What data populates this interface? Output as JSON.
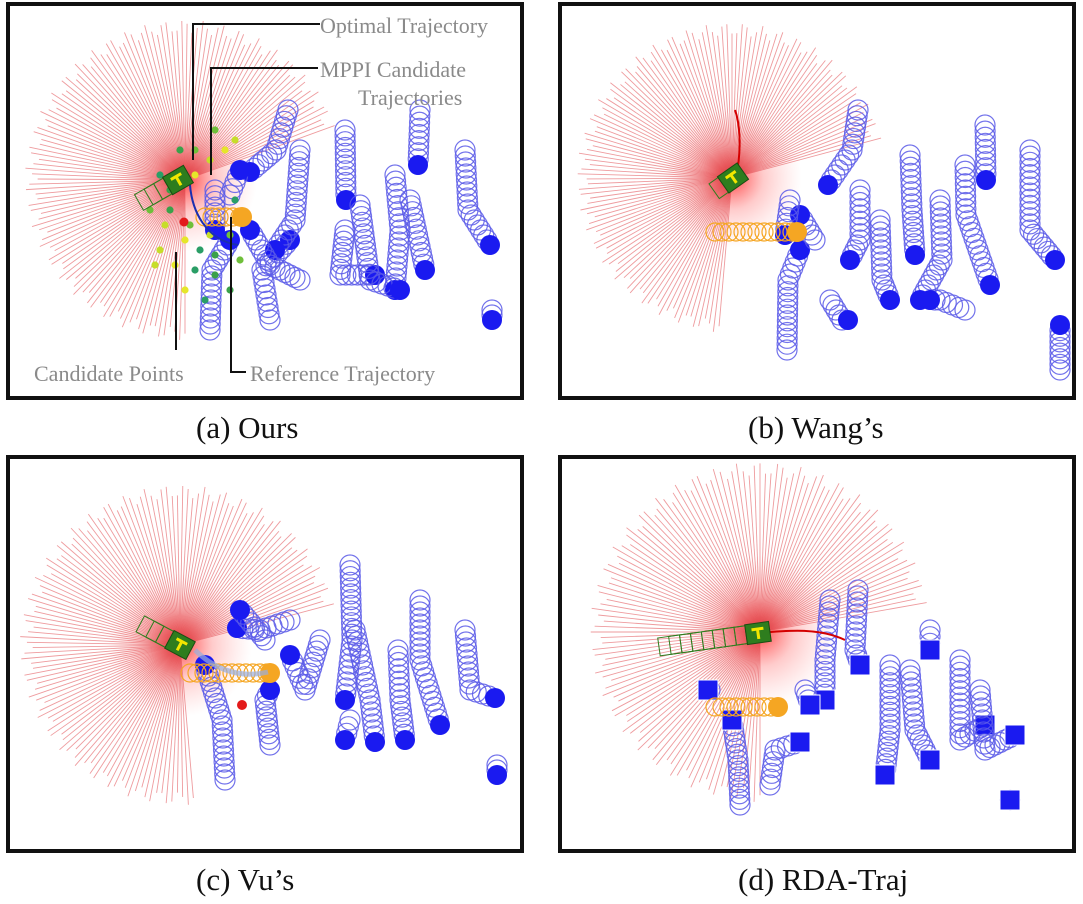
{
  "panels": [
    {
      "caption": "(a) Ours",
      "annotations": {
        "optimal": "Optimal Trajectory",
        "mppi_line1": "MPPI Candidate",
        "mppi_line2": "Trajectories",
        "candidate_points": "Candidate Points",
        "reference": "Reference Trajectory"
      }
    },
    {
      "caption": "(b) Wang’s"
    },
    {
      "caption": "(c) Vu’s"
    },
    {
      "caption": "(d) RDA-Traj"
    }
  ],
  "colors": {
    "lidar": "#e0484f",
    "obstacle": "#1a1af0",
    "obstacle_trail": "#5a5ae8",
    "robot": "#2e7d1e",
    "reference": "#f5a623",
    "optimal": "#d40000",
    "annotation": "#888888"
  }
}
